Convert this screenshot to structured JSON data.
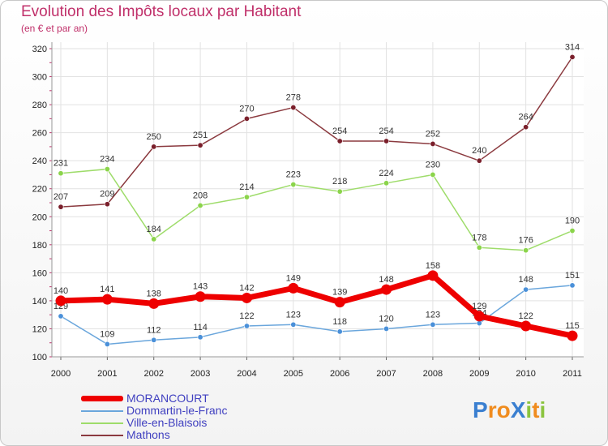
{
  "title": "Evolution des Impôts locaux par Habitant",
  "subtitle": "(en € et par an)",
  "logo": {
    "text": "ProXiti",
    "letters": [
      "P",
      "r",
      "o",
      "X",
      "i",
      "t",
      "i"
    ],
    "colors": [
      "#3a7fd0",
      "#f08c1e",
      "#f08c1e",
      "#3a7fd0",
      "#8bc43f",
      "#f08c1e",
      "#8bc43f"
    ]
  },
  "chart_data": {
    "type": "line",
    "title": "Evolution des Impôts locaux par Habitant",
    "subtitle": "(en € et par an)",
    "xlabel": "",
    "ylabel": "",
    "categories": [
      "2000",
      "2001",
      "2002",
      "2003",
      "2004",
      "2005",
      "2006",
      "2007",
      "2008",
      "2009",
      "2010",
      "2011"
    ],
    "ylim": [
      100,
      320
    ],
    "yticks": [
      100,
      120,
      140,
      160,
      180,
      200,
      220,
      240,
      260,
      280,
      300,
      320
    ],
    "grid": true,
    "legend_position": "bottom-left",
    "series": [
      {
        "name": "Mathons",
        "color": "#7a1f2b",
        "line_color": "#8b3a3f",
        "values": [
          207,
          209,
          250,
          251,
          270,
          278,
          254,
          254,
          252,
          240,
          264,
          314
        ]
      },
      {
        "name": "Ville-en-Blaisois",
        "color": "#8bd44b",
        "line_color": "#9edc6a",
        "values": [
          231,
          234,
          184,
          208,
          214,
          223,
          218,
          224,
          230,
          178,
          176,
          190
        ]
      },
      {
        "name": "Dommartin-le-Franc",
        "color": "#4a90d9",
        "line_color": "#6aa6dc",
        "values": [
          129,
          109,
          112,
          114,
          122,
          123,
          118,
          120,
          123,
          124,
          148,
          151
        ]
      },
      {
        "name": "MORANCOURT",
        "color": "#ee0000",
        "line_color": "#ee0000",
        "values": [
          140,
          141,
          138,
          143,
          142,
          149,
          139,
          148,
          158,
          129,
          122,
          115
        ]
      }
    ],
    "legend_order": [
      "MORANCOURT",
      "Dommartin-le-Franc",
      "Ville-en-Blaisois",
      "Mathons"
    ]
  }
}
